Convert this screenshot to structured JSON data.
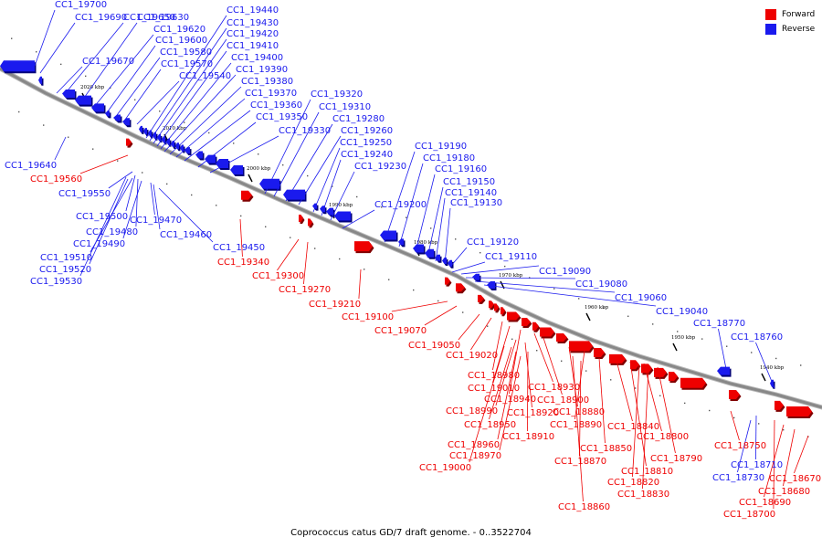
{
  "caption": "Coprococcus catus GD/7 draft genome. - 0..3522704",
  "legend": [
    {
      "label": "Forward",
      "color": "#ee0000"
    },
    {
      "label": "Reverse",
      "color": "#1a1aee"
    }
  ],
  "colors": {
    "forward": "#ee0000",
    "reverse": "#1a1aee",
    "backbone": "#888888"
  },
  "ticks": [
    "2020 kbp",
    "2010 kbp",
    "2000 kbp",
    "1990 kbp",
    "1980 kbp",
    "1970 kbp",
    "1960 kbp",
    "1950 kbp",
    "1940 kbp"
  ],
  "reverse_labels": [
    "CC1_19700",
    "CC1_19690",
    "CC1_19650",
    "CC1_19630",
    "CC1_19620",
    "CC1_19600",
    "CC1_19670",
    "CC1_19580",
    "CC1_19570",
    "CC1_19540",
    "CC1_19440",
    "CC1_19430",
    "CC1_19420",
    "CC1_19410",
    "CC1_19400",
    "CC1_19390",
    "CC1_19380",
    "CC1_19370",
    "CC1_19360",
    "CC1_19350",
    "CC1_19330",
    "CC1_19320",
    "CC1_19310",
    "CC1_19280",
    "CC1_19260",
    "CC1_19250",
    "CC1_19240",
    "CC1_19230",
    "CC1_19190",
    "CC1_19180",
    "CC1_19160",
    "CC1_19150",
    "CC1_19140",
    "CC1_19130",
    "CC1_19200",
    "CC1_19120",
    "CC1_19110",
    "CC1_19090",
    "CC1_19080",
    "CC1_19060",
    "CC1_19040",
    "CC1_18770",
    "CC1_18760",
    "CC1_19640",
    "CC1_19550",
    "CC1_19500",
    "CC1_19470",
    "CC1_19480",
    "CC1_19490",
    "CC1_19460",
    "CC1_19510",
    "CC1_19450",
    "CC1_19520",
    "CC1_19530",
    "CC1_18710",
    "CC1_18730"
  ],
  "forward_labels": [
    "CC1_19560",
    "CC1_19340",
    "CC1_19300",
    "CC1_19270",
    "CC1_19210",
    "CC1_19100",
    "CC1_19070",
    "CC1_19050",
    "CC1_19020",
    "CC1_18980",
    "CC1_19010",
    "CC1_18940",
    "CC1_18930",
    "CC1_18990",
    "CC1_18900",
    "CC1_18920",
    "CC1_18880",
    "CC1_18950",
    "CC1_18890",
    "CC1_18910",
    "CC1_18840",
    "CC1_18800",
    "CC1_18960",
    "CC1_18850",
    "CC1_18970",
    "CC1_18790",
    "CC1_18870",
    "CC1_18810",
    "CC1_19000",
    "CC1_18820",
    "CC1_18830",
    "CC1_18860",
    "CC1_18750",
    "CC1_18670",
    "CC1_18680",
    "CC1_18690",
    "CC1_18700"
  ]
}
